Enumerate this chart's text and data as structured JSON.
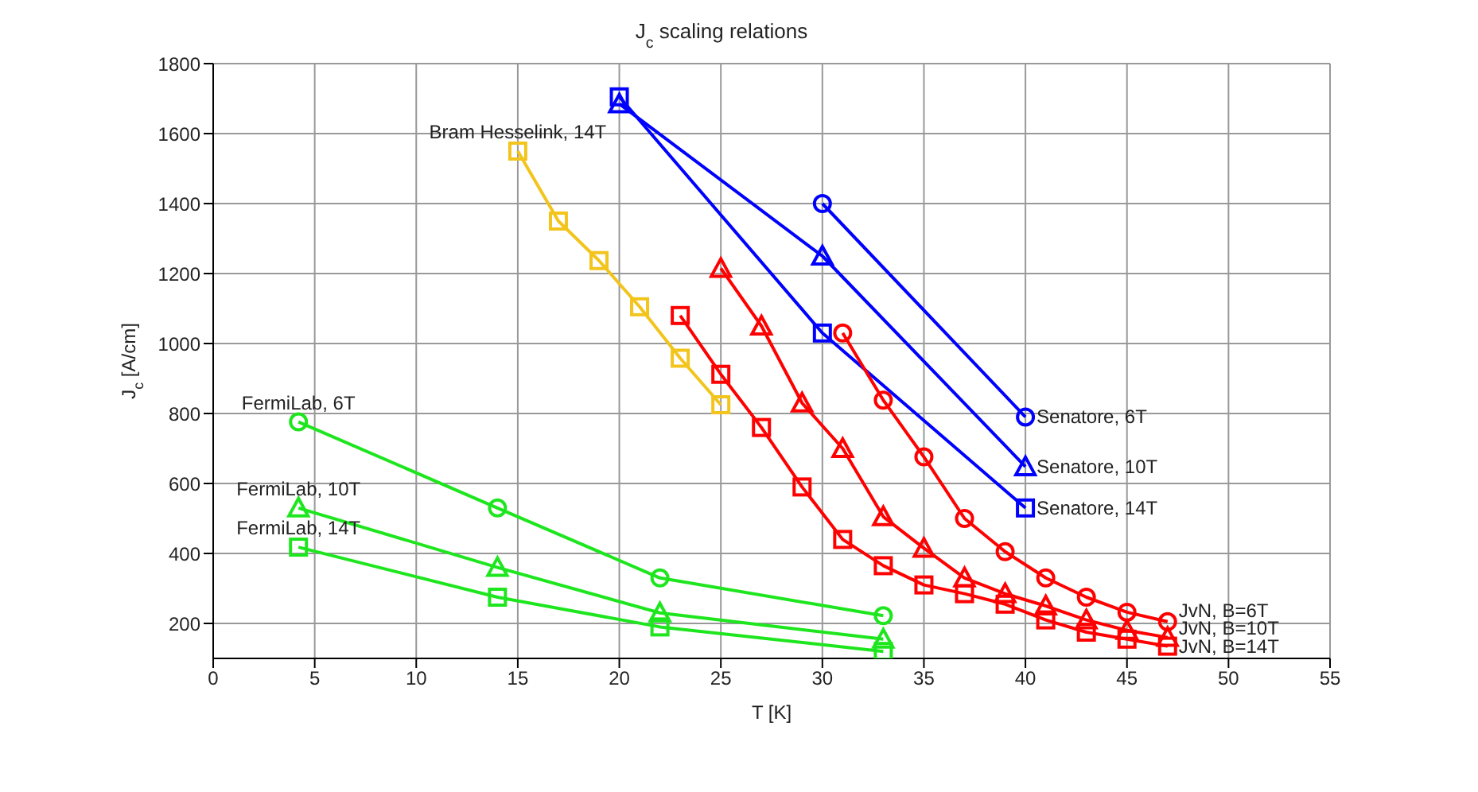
{
  "chart_data": {
    "type": "line",
    "title": "J$_{c}$ scaling relations",
    "xlabel": "T [K]",
    "ylabel": "J$_{c}$ [A/cm]",
    "xlim": [
      0,
      55
    ],
    "xticks": [
      0,
      5,
      10,
      15,
      20,
      25,
      30,
      35,
      40,
      45,
      50,
      55
    ],
    "ylim": [
      100,
      1800
    ],
    "yticks": [
      200,
      400,
      600,
      800,
      1000,
      1200,
      1400,
      1600,
      1800
    ],
    "grid": true,
    "series": [
      {
        "color": "#1ee61e",
        "marker": "circle",
        "x": [
          4.2,
          14,
          22,
          33
        ],
        "values": [
          776,
          530,
          330,
          222
        ]
      },
      {
        "color": "#1ee61e",
        "marker": "triangle",
        "x": [
          4.2,
          14,
          22,
          33
        ],
        "values": [
          530,
          360,
          230,
          155
        ]
      },
      {
        "color": "#1ee61e",
        "marker": "square",
        "x": [
          4.2,
          14,
          22,
          33
        ],
        "values": [
          418,
          275,
          190,
          120
        ]
      },
      {
        "color": "#f2c41c",
        "marker": "square",
        "x": [
          15,
          17,
          19,
          21,
          23,
          25
        ],
        "values": [
          1550,
          1350,
          1237,
          1105,
          958,
          825
        ]
      },
      {
        "color": "#0000ff",
        "marker": "circle",
        "x": [
          30,
          40
        ],
        "values": [
          1400,
          790
        ]
      },
      {
        "color": "#0000ff",
        "marker": "triangle",
        "x": [
          20,
          30,
          40
        ],
        "values": [
          1685,
          1250,
          648
        ]
      },
      {
        "color": "#0000ff",
        "marker": "square",
        "x": [
          20,
          30,
          40
        ],
        "values": [
          1705,
          1030,
          530
        ]
      },
      {
        "color": "#ff0000",
        "marker": "circle",
        "x": [
          31,
          33,
          35,
          37,
          39,
          41,
          43,
          45,
          47
        ],
        "values": [
          1030,
          838,
          676,
          500,
          405,
          330,
          275,
          232,
          205
        ]
      },
      {
        "color": "#ff0000",
        "marker": "triangle",
        "x": [
          25,
          27,
          29,
          31,
          33,
          35,
          37,
          39,
          41,
          43,
          45,
          47
        ],
        "values": [
          1215,
          1050,
          830,
          700,
          505,
          415,
          330,
          285,
          250,
          210,
          180,
          160
        ]
      },
      {
        "color": "#ff0000",
        "marker": "square",
        "x": [
          23,
          25,
          27,
          29,
          31,
          33,
          35,
          37,
          39,
          41,
          43,
          45,
          47
        ],
        "values": [
          1080,
          912,
          760,
          590,
          440,
          365,
          310,
          285,
          255,
          210,
          175,
          155,
          135
        ]
      }
    ],
    "annotations": [
      {
        "text": "FermiLab, 6T",
        "x": 4.2,
        "y": 776
      },
      {
        "text": "FermiLab, 10T",
        "x": 4.2,
        "y": 530
      },
      {
        "text": "FermiLab, 14T",
        "x": 4.2,
        "y": 418
      },
      {
        "text": "Bram Hesselink, 14T",
        "x": 15,
        "y": 1550
      },
      {
        "text": "Senatore, 6T",
        "x": 40,
        "y": 790
      },
      {
        "text": "Senatore, 10T",
        "x": 40,
        "y": 648
      },
      {
        "text": "Senatore, 14T",
        "x": 40,
        "y": 530
      },
      {
        "text": "JvN, B=6T",
        "x": 47,
        "y": 205
      },
      {
        "text": "JvN, B=10T",
        "x": 47,
        "y": 160
      },
      {
        "text": "JvN, B=14T",
        "x": 47,
        "y": 135
      }
    ]
  }
}
